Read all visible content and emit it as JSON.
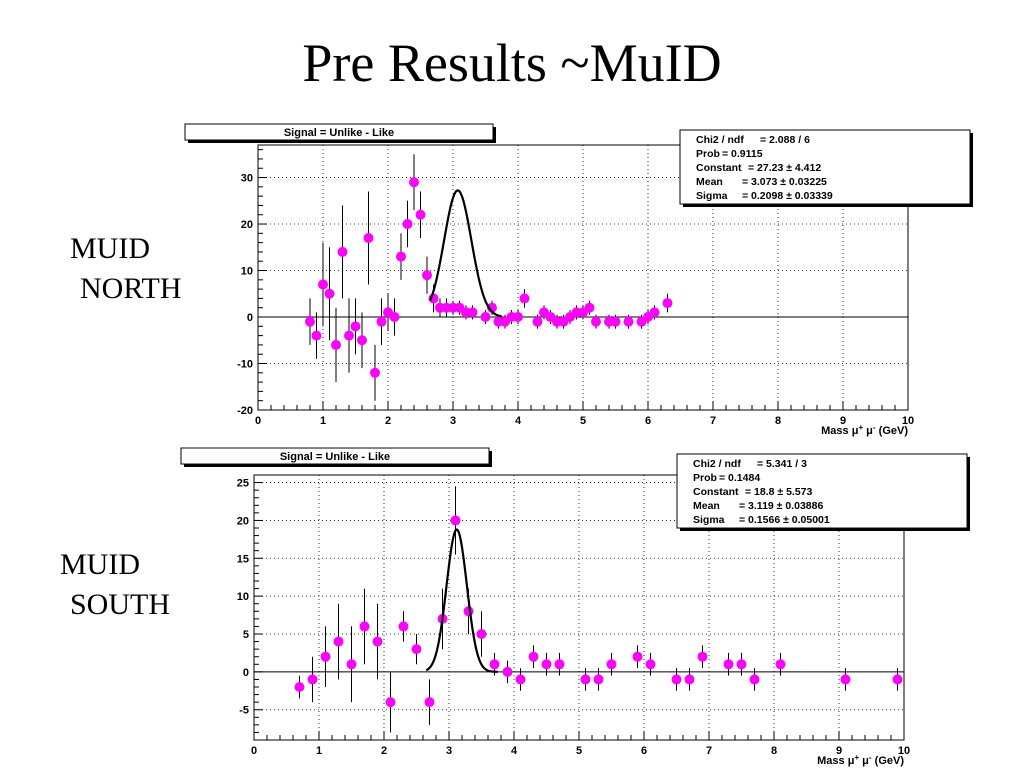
{
  "title": "Pre Results ~MuID",
  "labels": {
    "north": [
      "MUID",
      "NORTH"
    ],
    "south": [
      "MUID",
      "SOUTH"
    ]
  },
  "chart_data": [
    {
      "type": "scatter",
      "title": "Signal = Unlike - Like",
      "xlabel": "Mass",
      "xlabel_sup": [
        "+",
        "-"
      ],
      "xlabel_unit": "(GeV)",
      "xlim": [
        0,
        10
      ],
      "ylim": [
        -20,
        37
      ],
      "x_ticks": [
        "0",
        "1",
        "2",
        "3",
        "4",
        "5",
        "6",
        "7",
        "8",
        "9",
        "10"
      ],
      "y_ticks": [
        "-20",
        "-10",
        "0",
        "10",
        "20",
        "30"
      ],
      "grid": true,
      "stats": [
        {
          "name": "Chi2 / ndf",
          "value": "= 2.088 / 6"
        },
        {
          "name": "Prob",
          "value": "= 0.9115"
        },
        {
          "name": "Constant",
          "value": "= 27.23 ± 4.412"
        },
        {
          "name": "Mean",
          "value": "= 3.073 ± 0.03225"
        },
        {
          "name": "Sigma",
          "value": "= 0.2098 ± 0.03339"
        }
      ],
      "fit": {
        "constant": 27.23,
        "mean": 3.073,
        "sigma": 0.2098,
        "range": [
          2.65,
          3.75
        ]
      },
      "points": [
        {
          "x": 0.8,
          "y": -1,
          "err": 5
        },
        {
          "x": 0.9,
          "y": -4,
          "err": 5
        },
        {
          "x": 1.0,
          "y": 7,
          "err": 9
        },
        {
          "x": 1.1,
          "y": 5,
          "err": 10
        },
        {
          "x": 1.2,
          "y": -6,
          "err": 8
        },
        {
          "x": 1.3,
          "y": 14,
          "err": 10
        },
        {
          "x": 1.4,
          "y": -4,
          "err": 8
        },
        {
          "x": 1.5,
          "y": -2,
          "err": 6
        },
        {
          "x": 1.6,
          "y": -5,
          "err": 6
        },
        {
          "x": 1.7,
          "y": 17,
          "err": 10
        },
        {
          "x": 1.8,
          "y": -12,
          "err": 6
        },
        {
          "x": 1.9,
          "y": -1,
          "err": 5
        },
        {
          "x": 2.0,
          "y": 1,
          "err": 4
        },
        {
          "x": 2.1,
          "y": 0,
          "err": 4
        },
        {
          "x": 2.2,
          "y": 13,
          "err": 5
        },
        {
          "x": 2.3,
          "y": 20,
          "err": 5
        },
        {
          "x": 2.4,
          "y": 29,
          "err": 6
        },
        {
          "x": 2.5,
          "y": 22,
          "err": 5
        },
        {
          "x": 2.6,
          "y": 9,
          "err": 4
        },
        {
          "x": 2.7,
          "y": 4,
          "err": 3
        },
        {
          "x": 2.8,
          "y": 2,
          "err": 2
        },
        {
          "x": 2.9,
          "y": 2,
          "err": 2
        },
        {
          "x": 3.0,
          "y": 2,
          "err": 1.5
        },
        {
          "x": 3.1,
          "y": 2,
          "err": 1.5
        },
        {
          "x": 3.2,
          "y": 1,
          "err": 1.5
        },
        {
          "x": 3.3,
          "y": 1,
          "err": 1.5
        },
        {
          "x": 3.5,
          "y": 0,
          "err": 1.5
        },
        {
          "x": 3.6,
          "y": 2,
          "err": 1.5
        },
        {
          "x": 3.7,
          "y": -1,
          "err": 1.5
        },
        {
          "x": 3.8,
          "y": -1,
          "err": 1.5
        },
        {
          "x": 3.9,
          "y": 0,
          "err": 1.5
        },
        {
          "x": 4.0,
          "y": 0,
          "err": 1.5
        },
        {
          "x": 4.1,
          "y": 4,
          "err": 2
        },
        {
          "x": 4.3,
          "y": -1,
          "err": 1.5
        },
        {
          "x": 4.4,
          "y": 1,
          "err": 1.5
        },
        {
          "x": 4.5,
          "y": 0,
          "err": 1.5
        },
        {
          "x": 4.6,
          "y": -1,
          "err": 1.5
        },
        {
          "x": 4.7,
          "y": -1,
          "err": 1.5
        },
        {
          "x": 4.8,
          "y": 0,
          "err": 1.5
        },
        {
          "x": 4.9,
          "y": 1,
          "err": 1.5
        },
        {
          "x": 5.0,
          "y": 1,
          "err": 1.5
        },
        {
          "x": 5.1,
          "y": 2,
          "err": 1.5
        },
        {
          "x": 5.2,
          "y": -1,
          "err": 1.5
        },
        {
          "x": 5.4,
          "y": -1,
          "err": 1.5
        },
        {
          "x": 5.5,
          "y": -1,
          "err": 1.5
        },
        {
          "x": 5.7,
          "y": -1,
          "err": 1.5
        },
        {
          "x": 5.9,
          "y": -1,
          "err": 1.5
        },
        {
          "x": 6.0,
          "y": 0,
          "err": 1.5
        },
        {
          "x": 6.1,
          "y": 1,
          "err": 1.5
        },
        {
          "x": 6.3,
          "y": 3,
          "err": 2
        }
      ]
    },
    {
      "type": "scatter",
      "title": "Signal = Unlike - Like",
      "xlabel": "Mass",
      "xlabel_sup": [
        "+",
        "-"
      ],
      "xlabel_unit": "(GeV)",
      "xlim": [
        0,
        10
      ],
      "ylim": [
        -9,
        26
      ],
      "x_ticks": [
        "0",
        "1",
        "2",
        "3",
        "4",
        "5",
        "6",
        "7",
        "8",
        "9",
        "10"
      ],
      "y_ticks": [
        "-5",
        "0",
        "5",
        "10",
        "15",
        "20",
        "25"
      ],
      "grid": true,
      "stats": [
        {
          "name": "Chi2 / ndf",
          "value": "= 5.341 / 3"
        },
        {
          "name": "Prob",
          "value": "= 0.1484"
        },
        {
          "name": "Constant",
          "value": "= 18.8 ± 5.573"
        },
        {
          "name": "Mean",
          "value": "= 3.119 ± 0.03886"
        },
        {
          "name": "Sigma",
          "value": "= 0.1566 ± 0.05001"
        }
      ],
      "fit": {
        "constant": 18.8,
        "mean": 3.119,
        "sigma": 0.1566,
        "range": [
          2.65,
          3.75
        ]
      },
      "points": [
        {
          "x": 0.7,
          "y": -2,
          "err": 1.5
        },
        {
          "x": 0.9,
          "y": -1,
          "err": 3
        },
        {
          "x": 1.1,
          "y": 2,
          "err": 4
        },
        {
          "x": 1.3,
          "y": 4,
          "err": 5
        },
        {
          "x": 1.5,
          "y": 1,
          "err": 5
        },
        {
          "x": 1.7,
          "y": 6,
          "err": 5
        },
        {
          "x": 1.9,
          "y": 4,
          "err": 5
        },
        {
          "x": 2.1,
          "y": -4,
          "err": 4
        },
        {
          "x": 2.3,
          "y": 6,
          "err": 2
        },
        {
          "x": 2.5,
          "y": 3,
          "err": 2
        },
        {
          "x": 2.7,
          "y": -4,
          "err": 3
        },
        {
          "x": 2.9,
          "y": 7,
          "err": 4
        },
        {
          "x": 3.1,
          "y": 20,
          "err": 4.5
        },
        {
          "x": 3.3,
          "y": 8,
          "err": 3
        },
        {
          "x": 3.5,
          "y": 5,
          "err": 3
        },
        {
          "x": 3.7,
          "y": 1,
          "err": 1.5
        },
        {
          "x": 3.9,
          "y": 0,
          "err": 1.5
        },
        {
          "x": 4.1,
          "y": -1,
          "err": 1.5
        },
        {
          "x": 4.3,
          "y": 2,
          "err": 1.5
        },
        {
          "x": 4.5,
          "y": 1,
          "err": 1.5
        },
        {
          "x": 4.7,
          "y": 1,
          "err": 1.5
        },
        {
          "x": 5.1,
          "y": -1,
          "err": 1.5
        },
        {
          "x": 5.3,
          "y": -1,
          "err": 1.5
        },
        {
          "x": 5.5,
          "y": 1,
          "err": 1.5
        },
        {
          "x": 5.9,
          "y": 2,
          "err": 1.5
        },
        {
          "x": 6.1,
          "y": 1,
          "err": 1.5
        },
        {
          "x": 6.5,
          "y": -1,
          "err": 1.5
        },
        {
          "x": 6.7,
          "y": -1,
          "err": 1.5
        },
        {
          "x": 6.9,
          "y": 2,
          "err": 1.5
        },
        {
          "x": 7.3,
          "y": 1,
          "err": 1.5
        },
        {
          "x": 7.5,
          "y": 1,
          "err": 1.5
        },
        {
          "x": 7.7,
          "y": -1,
          "err": 1.5
        },
        {
          "x": 8.1,
          "y": 1,
          "err": 1.5
        },
        {
          "x": 9.1,
          "y": -1,
          "err": 1.5
        },
        {
          "x": 9.9,
          "y": -1,
          "err": 1.5
        }
      ]
    }
  ]
}
